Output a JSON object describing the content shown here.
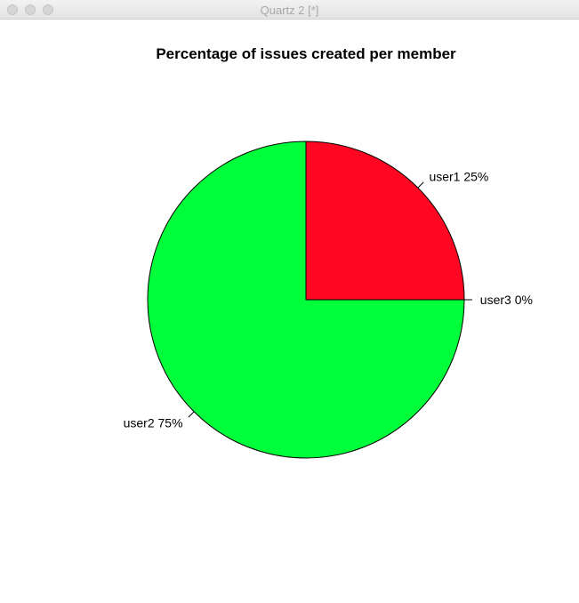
{
  "window": {
    "title": "Quartz 2 [*]"
  },
  "chart_data": {
    "type": "pie",
    "title": "Percentage of issues created per member",
    "slices": [
      {
        "label": "user1 25%",
        "value": 25,
        "color": "#ff0722"
      },
      {
        "label": "user2 75%",
        "value": 75,
        "color": "#00ff3b"
      },
      {
        "label": "user3 0%",
        "value": 0,
        "color": "#0022ff"
      }
    ],
    "start_angle_deg": 0,
    "direction": "counterclockwise",
    "border_color": "#000000"
  }
}
